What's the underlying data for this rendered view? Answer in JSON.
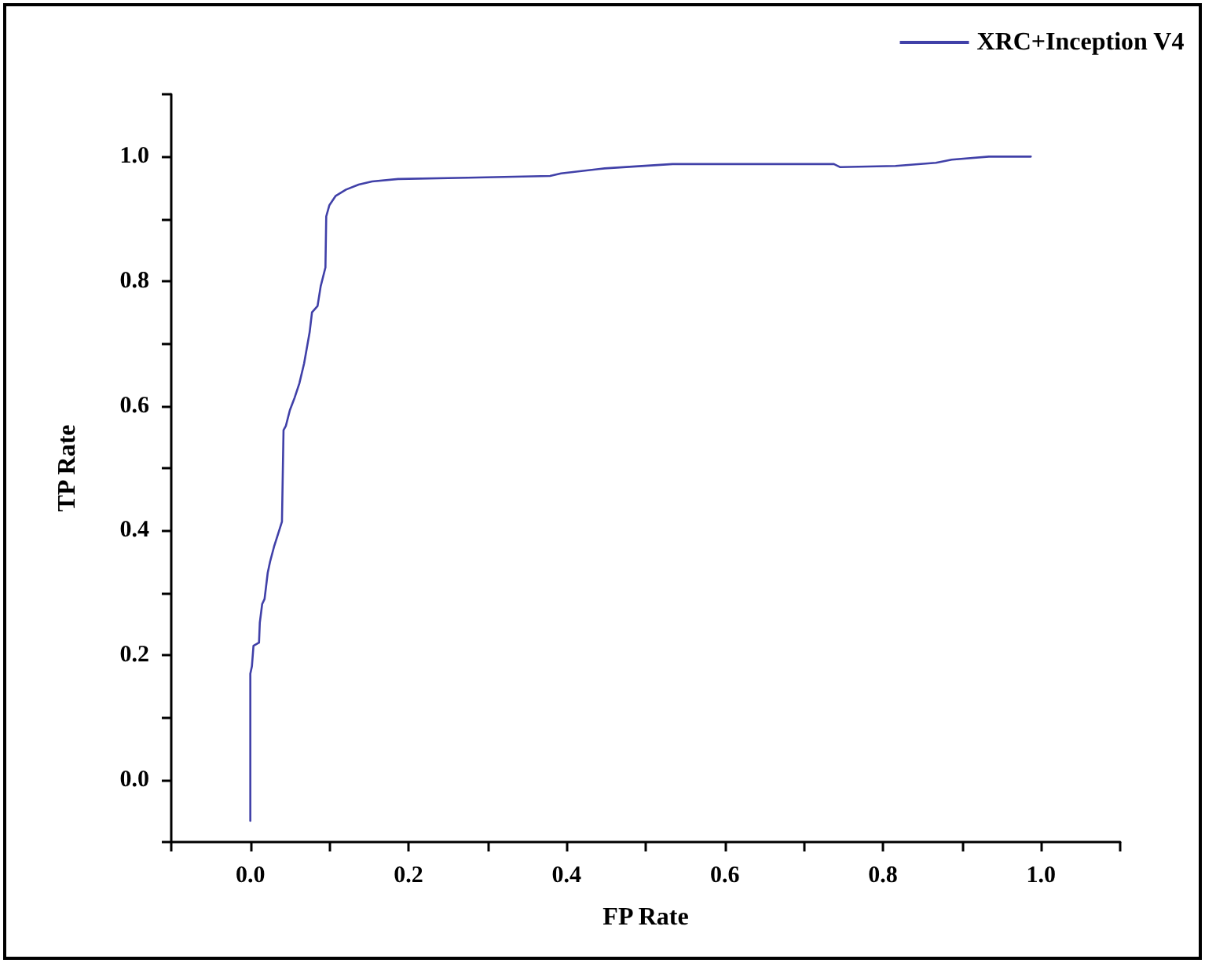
{
  "chart_data": {
    "type": "line",
    "xlabel": "FP Rate",
    "ylabel": "TP Rate",
    "xlim": [
      -0.1,
      1.1
    ],
    "ylim": [
      -0.1,
      1.1
    ],
    "xticks": [
      {
        "value": -0.1,
        "label": null
      },
      {
        "value": 0,
        "label": "0.0"
      },
      {
        "value": 0.1,
        "label": null
      },
      {
        "value": 0.2,
        "label": "0.2"
      },
      {
        "value": 0.3,
        "label": null
      },
      {
        "value": 0.4,
        "label": "0.4"
      },
      {
        "value": 0.5,
        "label": null
      },
      {
        "value": 0.6,
        "label": "0.6"
      },
      {
        "value": 0.7,
        "label": null
      },
      {
        "value": 0.8,
        "label": "0.8"
      },
      {
        "value": 0.9,
        "label": null
      },
      {
        "value": 1,
        "label": "1.0"
      },
      {
        "value": 1.1,
        "label": null
      }
    ],
    "yticks": [
      {
        "value": -0.1,
        "label": null
      },
      {
        "value": 0,
        "label": "0.0"
      },
      {
        "value": 0.1,
        "label": null
      },
      {
        "value": 0.2,
        "label": "0.2"
      },
      {
        "value": 0.3,
        "label": null
      },
      {
        "value": 0.4,
        "label": "0.4"
      },
      {
        "value": 0.5,
        "label": null
      },
      {
        "value": 0.6,
        "label": "0.6"
      },
      {
        "value": 0.7,
        "label": null
      },
      {
        "value": 0.8,
        "label": "0.8"
      },
      {
        "value": 0.9,
        "label": null
      },
      {
        "value": 1,
        "label": "1.0"
      },
      {
        "value": 1.1,
        "label": null
      }
    ],
    "grid": false,
    "legend": "top right",
    "marker": "none",
    "line_style": "solid",
    "series": [
      {
        "name": "XRC+Inception V4",
        "color": "#4040a8",
        "x": [
          0.0,
          0.0,
          0.002,
          0.004,
          0.011,
          0.012,
          0.015,
          0.018,
          0.022,
          0.025,
          0.03,
          0.035,
          0.04,
          0.042,
          0.045,
          0.05,
          0.056,
          0.062,
          0.068,
          0.075,
          0.078,
          0.085,
          0.089,
          0.095,
          0.096,
          0.1,
          0.108,
          0.121,
          0.137,
          0.154,
          0.187,
          0.275,
          0.379,
          0.393,
          0.448,
          0.534,
          0.738,
          0.746,
          0.816,
          0.867,
          0.887,
          0.934,
          0.987
        ],
        "values": [
          -0.066,
          0.17,
          0.182,
          0.215,
          0.22,
          0.252,
          0.282,
          0.29,
          0.332,
          0.35,
          0.374,
          0.394,
          0.414,
          0.561,
          0.568,
          0.593,
          0.613,
          0.636,
          0.668,
          0.718,
          0.75,
          0.76,
          0.792,
          0.822,
          0.904,
          0.922,
          0.937,
          0.947,
          0.955,
          0.96,
          0.964,
          0.966,
          0.969,
          0.973,
          0.981,
          0.988,
          0.988,
          0.983,
          0.985,
          0.99,
          0.995,
          1.0,
          1.0
        ]
      }
    ]
  }
}
